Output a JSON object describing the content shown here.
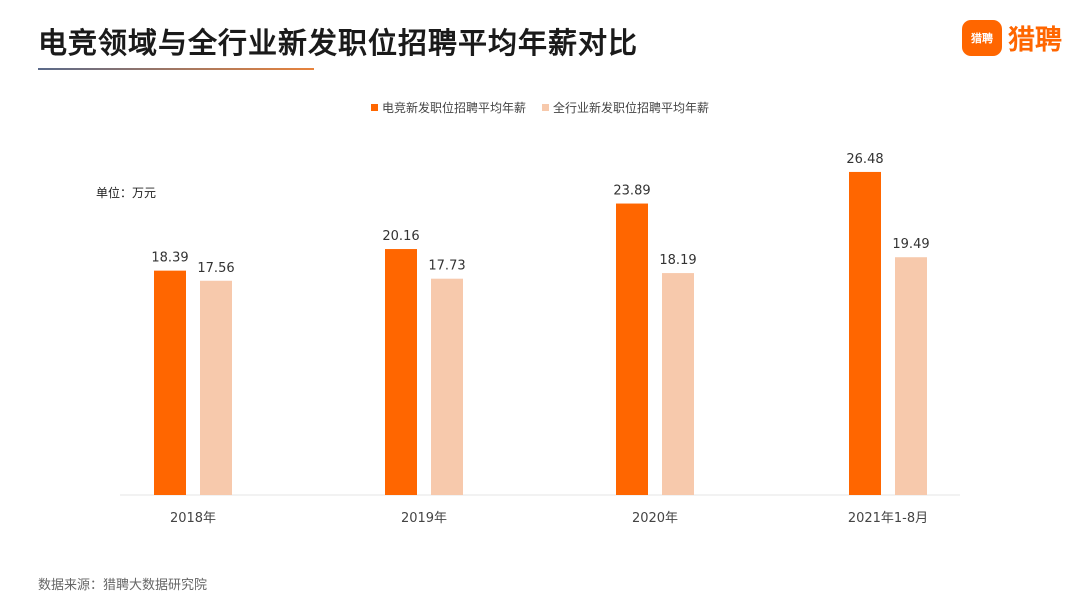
{
  "title": "电竞领域与全行业新发职位招聘平均年薪对比",
  "logo": {
    "badge_text": "猎聘",
    "text": "猎聘",
    "icon": "chat-bubble-logo-icon"
  },
  "unit_label": "单位：万元",
  "source": "数据来源：猎聘大数据研究院",
  "colors": {
    "accent": "#FF6600",
    "light": "#F7C9AC",
    "title_line": "#E8833C"
  },
  "chart_data": {
    "type": "bar",
    "categories": [
      "2018年",
      "2019年",
      "2020年",
      "2021年1-8月"
    ],
    "series": [
      {
        "name": "电竞新发职位招聘平均年薪",
        "values": [
          18.39,
          20.16,
          23.89,
          26.48
        ]
      },
      {
        "name": "全行业新发职位招聘平均年薪",
        "values": [
          17.56,
          17.73,
          18.19,
          19.49
        ]
      }
    ],
    "ylim": [
      0,
      30
    ],
    "grid": false,
    "legend_position": "top-center",
    "ylabel": ""
  }
}
